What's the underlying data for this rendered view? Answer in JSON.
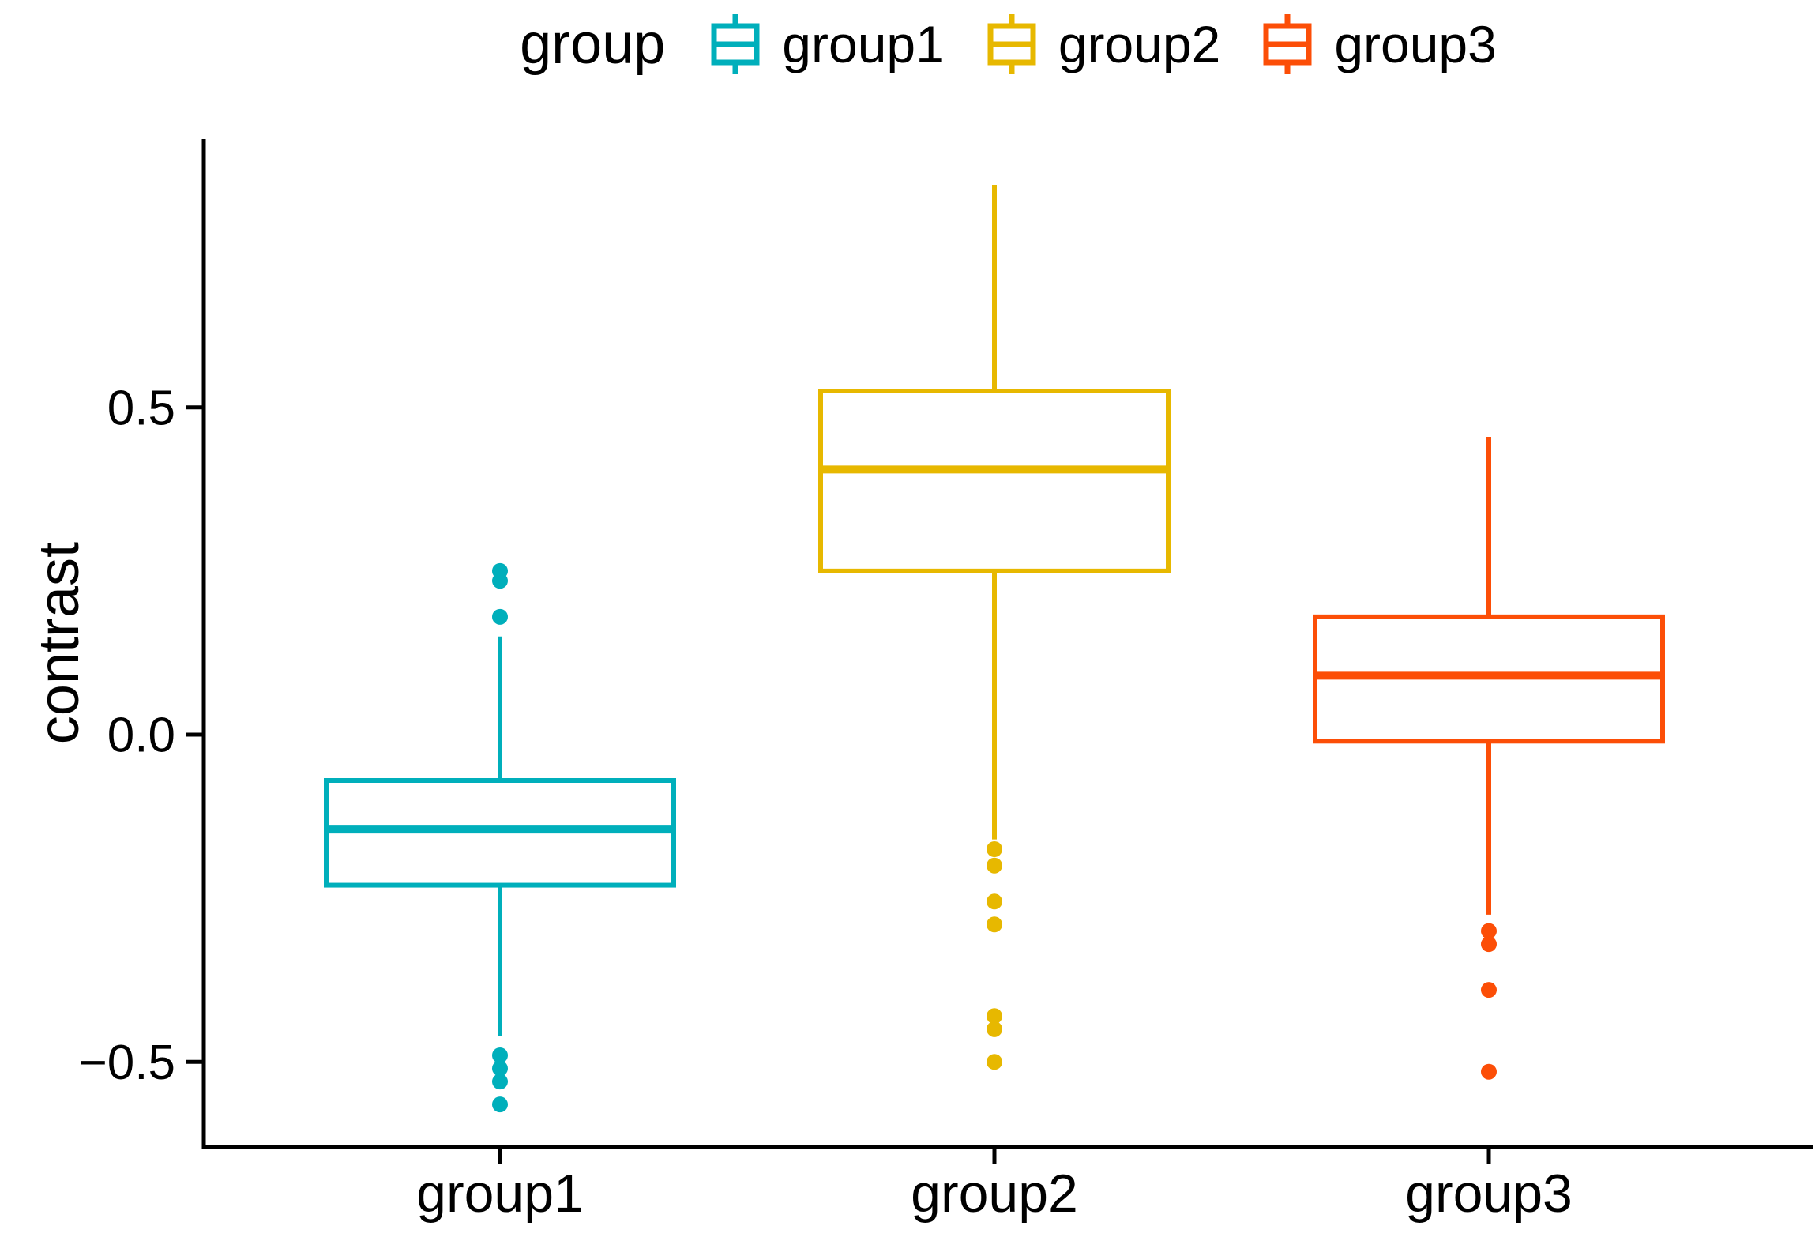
{
  "legend": {
    "title": "group",
    "entries": [
      {
        "label": "group1",
        "color": "#00AFBB"
      },
      {
        "label": "group2",
        "color": "#E7B800"
      },
      {
        "label": "group3",
        "color": "#FC4E07"
      }
    ]
  },
  "chart_data": {
    "type": "boxplot",
    "title": "",
    "xlabel": "",
    "ylabel": "contrast",
    "categories": [
      "group1",
      "group2",
      "group3"
    ],
    "y_ticks": [
      {
        "value": -0.5,
        "label": "−0.5"
      },
      {
        "value": 0.0,
        "label": "0.0"
      },
      {
        "value": 0.5,
        "label": "0.5"
      }
    ],
    "ylim": [
      -0.63,
      0.91
    ],
    "grid": false,
    "legend_position": "top",
    "series": [
      {
        "name": "group1",
        "color": "#00AFBB",
        "whisker_low": -0.46,
        "q1": -0.23,
        "median": -0.145,
        "q3": -0.07,
        "whisker_high": 0.15,
        "outliers": [
          0.25,
          0.235,
          0.18,
          -0.49,
          -0.51,
          -0.53,
          -0.565
        ]
      },
      {
        "name": "group2",
        "color": "#E7B800",
        "whisker_low": -0.16,
        "q1": 0.25,
        "median": 0.405,
        "q3": 0.525,
        "whisker_high": 0.84,
        "outliers": [
          -0.175,
          -0.2,
          -0.255,
          -0.29,
          -0.43,
          -0.45,
          -0.5
        ]
      },
      {
        "name": "group3",
        "color": "#FC4E07",
        "whisker_low": -0.275,
        "q1": -0.01,
        "median": 0.09,
        "q3": 0.18,
        "whisker_high": 0.455,
        "outliers": [
          -0.3,
          -0.32,
          -0.39,
          -0.515
        ]
      }
    ]
  }
}
